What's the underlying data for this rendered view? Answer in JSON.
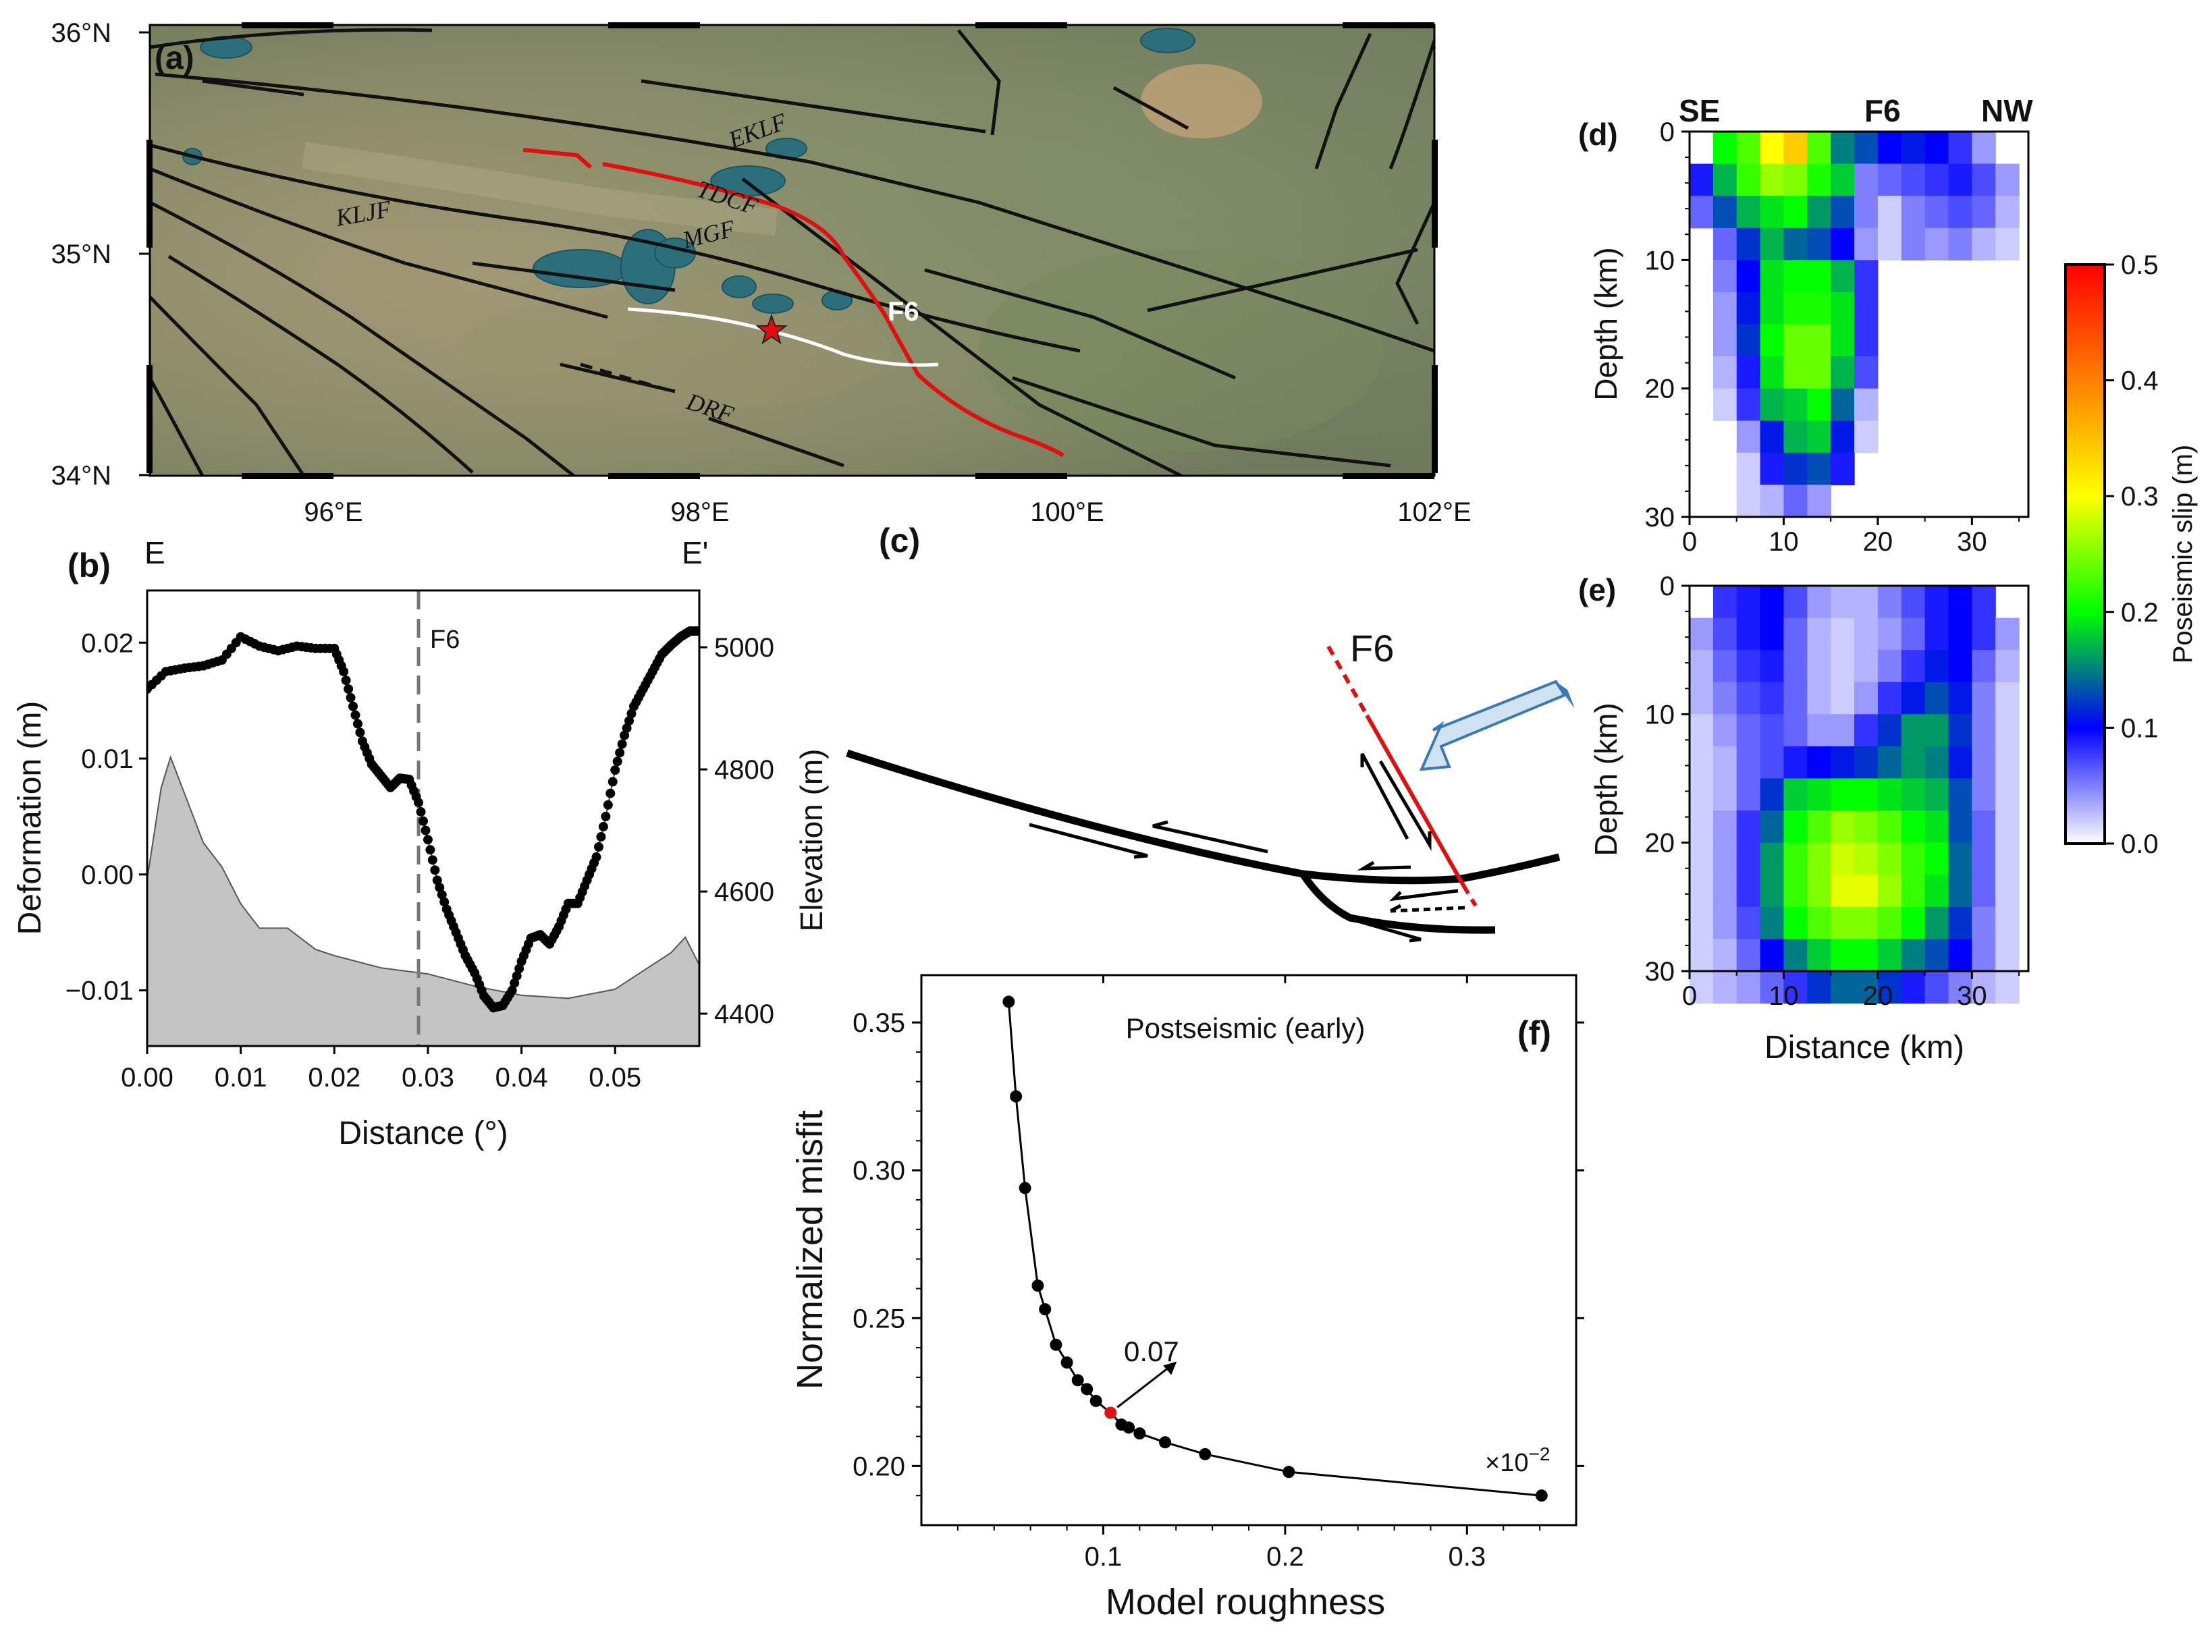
{
  "colors": {
    "terrain_base": "#8c8a6a",
    "lake": "#2c6f7a",
    "fault": "#111111",
    "rupture": "#e01010",
    "profile": "#ffffff",
    "epicenter": "#e01010",
    "dash": "#777777",
    "shade": "#c4c4c4",
    "arrow_fill": "#cfe3f2",
    "arrow_edge": "#3a78b8"
  },
  "panel_a": {
    "label": "(a)",
    "lat_ticks": [
      "36°N",
      "35°N",
      "34°N"
    ],
    "lon_ticks": [
      "96°E",
      "98°E",
      "100°E",
      "102°E"
    ],
    "fault_labels": [
      "EKLF",
      "TDCF",
      "MGF",
      "KLJF",
      "DRF"
    ],
    "rupture_label": "F6",
    "epicenter_marker": "star-icon"
  },
  "chart_data": [
    {
      "id": "b",
      "type": "line",
      "label": "(b)",
      "profile_start": "E",
      "profile_end": "E'",
      "xlabel": "Distance (°)",
      "ylabel": "Deformation (m)",
      "xlim": [
        0.0,
        0.059
      ],
      "ylim": [
        -0.0148,
        0.0245
      ],
      "x_ticks": [
        "0.00",
        "0.01",
        "0.02",
        "0.03",
        "0.04",
        "0.05"
      ],
      "y_ticks": [
        "0.02",
        "0.01",
        "0.00",
        "−0.01"
      ],
      "y2_ticks": [
        "5000",
        "4800",
        "4600",
        "4400"
      ],
      "y2lim": [
        4347,
        5093
      ],
      "marker_x": 0.029,
      "marker_label": "F6",
      "deformation": {
        "x": [
          0.0,
          0.002,
          0.004,
          0.006,
          0.008,
          0.01,
          0.012,
          0.014,
          0.016,
          0.018,
          0.02,
          0.021,
          0.022,
          0.023,
          0.024,
          0.025,
          0.026,
          0.027,
          0.028,
          0.029,
          0.03,
          0.031,
          0.032,
          0.033,
          0.034,
          0.035,
          0.036,
          0.037,
          0.038,
          0.039,
          0.04,
          0.041,
          0.042,
          0.043,
          0.044,
          0.045,
          0.046,
          0.047,
          0.048,
          0.049,
          0.05,
          0.051,
          0.052,
          0.053,
          0.054,
          0.055,
          0.056,
          0.057,
          0.058,
          0.059
        ],
        "y": [
          0.016,
          0.0175,
          0.0178,
          0.018,
          0.0185,
          0.0205,
          0.0197,
          0.0193,
          0.0197,
          0.0195,
          0.0195,
          0.0175,
          0.0145,
          0.0115,
          0.0095,
          0.0085,
          0.0075,
          0.0083,
          0.0082,
          0.0062,
          0.003,
          -0.0005,
          -0.003,
          -0.005,
          -0.007,
          -0.0085,
          -0.0105,
          -0.0115,
          -0.0113,
          -0.01,
          -0.0075,
          -0.0055,
          -0.0052,
          -0.006,
          -0.0045,
          -0.0025,
          -0.0025,
          -0.0005,
          0.0015,
          0.005,
          0.009,
          0.012,
          0.0145,
          0.016,
          0.0175,
          0.019,
          0.0198,
          0.0205,
          0.021,
          0.021
        ]
      },
      "elevation": {
        "x": [
          0.0,
          0.0015,
          0.0025,
          0.004,
          0.006,
          0.008,
          0.01,
          0.012,
          0.015,
          0.018,
          0.02,
          0.025,
          0.03,
          0.035,
          0.04,
          0.045,
          0.05,
          0.053,
          0.056,
          0.0575,
          0.059
        ],
        "y": [
          4620,
          4770,
          4820,
          4760,
          4680,
          4640,
          4580,
          4540,
          4540,
          4505,
          4495,
          4475,
          4465,
          4445,
          4430,
          4425,
          4440,
          4470,
          4500,
          4525,
          4480
        ]
      }
    },
    {
      "id": "f",
      "type": "line",
      "label": "(f)",
      "title": "Postseismic (early)",
      "xlabel": "Model roughness",
      "ylabel": "Normalized misfit",
      "xlim": [
        0.0,
        0.36
      ],
      "ylim": [
        0.18,
        0.366
      ],
      "x_ticks": [
        "0.1",
        "0.2",
        "0.3"
      ],
      "y_ticks": [
        "0.35",
        "0.30",
        "0.25",
        "0.20"
      ],
      "x_scale_label": "×10",
      "x_scale_exp": "−2",
      "selected_annotation": "0.07",
      "selected_index": 10,
      "points": {
        "x": [
          0.048,
          0.052,
          0.057,
          0.064,
          0.068,
          0.074,
          0.08,
          0.086,
          0.091,
          0.096,
          0.104,
          0.11,
          0.114,
          0.12,
          0.134,
          0.156,
          0.202,
          0.341
        ],
        "y": [
          0.357,
          0.325,
          0.294,
          0.261,
          0.253,
          0.241,
          0.235,
          0.229,
          0.226,
          0.222,
          0.218,
          0.214,
          0.213,
          0.211,
          0.208,
          0.204,
          0.198,
          0.19
        ]
      }
    },
    {
      "id": "d",
      "type": "heatmap",
      "label": "(d)",
      "top_labels": [
        "SE",
        "F6",
        "NW"
      ],
      "ylabel": "Depth (km)",
      "xlim": [
        0,
        36
      ],
      "ylim": [
        0,
        30
      ],
      "x_ticks": [
        "0",
        "10",
        "20",
        "30"
      ],
      "y_ticks": [
        "0",
        "10",
        "20",
        "30"
      ],
      "patch_km": 2.5,
      "slip_grid": [
        [
          0.0,
          0.2,
          0.23,
          0.3,
          0.34,
          0.23,
          0.15,
          0.13,
          0.1,
          0.11,
          0.1,
          0.08,
          0.04,
          0.0
        ],
        [
          0.09,
          0.17,
          0.22,
          0.26,
          0.25,
          0.21,
          0.18,
          0.05,
          0.06,
          0.07,
          0.08,
          0.09,
          0.07,
          0.04
        ],
        [
          0.06,
          0.13,
          0.17,
          0.19,
          0.2,
          0.16,
          0.13,
          0.05,
          0.02,
          0.05,
          0.06,
          0.07,
          0.06,
          0.03
        ],
        [
          0.0,
          0.06,
          0.12,
          0.17,
          0.14,
          0.13,
          0.1,
          0.04,
          0.02,
          0.05,
          0.04,
          0.05,
          0.03,
          0.02
        ],
        [
          0.0,
          0.05,
          0.1,
          0.19,
          0.2,
          0.2,
          0.17,
          0.08,
          0.0,
          0.0,
          0.0,
          0.0,
          0.0,
          0.0
        ],
        [
          0.0,
          0.04,
          0.11,
          0.19,
          0.21,
          0.21,
          0.19,
          0.08,
          0.0,
          0.0,
          0.0,
          0.0,
          0.0,
          0.0
        ],
        [
          0.0,
          0.04,
          0.12,
          0.2,
          0.24,
          0.24,
          0.19,
          0.08,
          0.0,
          0.0,
          0.0,
          0.0,
          0.0,
          0.0
        ],
        [
          0.0,
          0.03,
          0.09,
          0.19,
          0.24,
          0.24,
          0.17,
          0.07,
          0.0,
          0.0,
          0.0,
          0.0,
          0.0,
          0.0
        ],
        [
          0.0,
          0.02,
          0.08,
          0.17,
          0.18,
          0.2,
          0.14,
          0.03,
          0.0,
          0.0,
          0.0,
          0.0,
          0.0,
          0.0
        ],
        [
          0.0,
          0.0,
          0.04,
          0.11,
          0.17,
          0.18,
          0.11,
          0.02,
          0.0,
          0.0,
          0.0,
          0.0,
          0.0,
          0.0
        ],
        [
          0.0,
          0.0,
          0.02,
          0.09,
          0.12,
          0.13,
          0.09,
          0.0,
          0.0,
          0.0,
          0.0,
          0.0,
          0.0,
          0.0
        ],
        [
          0.0,
          0.0,
          0.02,
          0.03,
          0.06,
          0.04,
          0.0,
          0.0,
          0.0,
          0.0,
          0.0,
          0.0,
          0.0,
          0.0
        ]
      ]
    },
    {
      "id": "e",
      "type": "heatmap",
      "label": "(e)",
      "xlabel": "Distance (km)",
      "ylabel": "Depth (km)",
      "xlim": [
        0,
        36
      ],
      "ylim": [
        0,
        30
      ],
      "x_ticks": [
        "0",
        "10",
        "20",
        "30"
      ],
      "y_ticks": [
        "0",
        "10",
        "20",
        "30"
      ],
      "patch_km": 2.5,
      "slip_grid": [
        [
          0.0,
          0.08,
          0.09,
          0.1,
          0.07,
          0.04,
          0.03,
          0.03,
          0.05,
          0.07,
          0.09,
          0.1,
          0.08,
          0.0
        ],
        [
          0.04,
          0.07,
          0.09,
          0.1,
          0.06,
          0.03,
          0.02,
          0.03,
          0.04,
          0.06,
          0.09,
          0.1,
          0.08,
          0.04
        ],
        [
          0.03,
          0.06,
          0.08,
          0.09,
          0.06,
          0.03,
          0.02,
          0.03,
          0.05,
          0.08,
          0.11,
          0.1,
          0.06,
          0.03
        ],
        [
          0.03,
          0.05,
          0.07,
          0.08,
          0.06,
          0.03,
          0.02,
          0.04,
          0.08,
          0.11,
          0.13,
          0.11,
          0.05,
          0.02
        ],
        [
          0.02,
          0.04,
          0.06,
          0.07,
          0.06,
          0.04,
          0.04,
          0.08,
          0.12,
          0.16,
          0.16,
          0.12,
          0.05,
          0.02
        ],
        [
          0.02,
          0.03,
          0.06,
          0.07,
          0.09,
          0.1,
          0.11,
          0.12,
          0.14,
          0.16,
          0.15,
          0.11,
          0.05,
          0.02
        ],
        [
          0.02,
          0.03,
          0.06,
          0.12,
          0.18,
          0.19,
          0.2,
          0.2,
          0.19,
          0.18,
          0.17,
          0.13,
          0.05,
          0.02
        ],
        [
          0.02,
          0.04,
          0.08,
          0.14,
          0.2,
          0.23,
          0.26,
          0.25,
          0.23,
          0.2,
          0.19,
          0.13,
          0.06,
          0.02
        ],
        [
          0.02,
          0.04,
          0.08,
          0.16,
          0.22,
          0.25,
          0.28,
          0.27,
          0.25,
          0.22,
          0.2,
          0.14,
          0.06,
          0.02
        ],
        [
          0.02,
          0.04,
          0.08,
          0.16,
          0.22,
          0.25,
          0.29,
          0.29,
          0.26,
          0.22,
          0.19,
          0.14,
          0.06,
          0.02
        ],
        [
          0.02,
          0.04,
          0.07,
          0.15,
          0.2,
          0.23,
          0.25,
          0.25,
          0.23,
          0.2,
          0.16,
          0.12,
          0.05,
          0.02
        ],
        [
          0.02,
          0.03,
          0.06,
          0.1,
          0.15,
          0.18,
          0.2,
          0.2,
          0.18,
          0.15,
          0.13,
          0.1,
          0.05,
          0.02
        ],
        [
          0.02,
          0.03,
          0.04,
          0.06,
          0.08,
          0.12,
          0.14,
          0.14,
          0.12,
          0.09,
          0.07,
          0.05,
          0.03,
          0.02
        ]
      ]
    }
  ],
  "panel_c": {
    "label": "(c)",
    "ylabel": "Elevation (m)",
    "fault_label": "F6"
  },
  "colorbar": {
    "label": "Poseismic slip (m)",
    "range": [
      0.0,
      0.5
    ],
    "ticks": [
      "0.5",
      "0.4",
      "0.3",
      "0.2",
      "0.1",
      "0.0"
    ]
  }
}
